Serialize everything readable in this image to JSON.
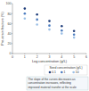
{
  "chart_data": {
    "type": "scatter",
    "x_label": "Log concentration (g/L)",
    "y_label": "Pre-strain fracture (%)",
    "x": [
      1,
      2,
      3,
      4,
      5
    ],
    "series": [
      {
        "name": "0.1",
        "color": "#1f3d7a",
        "marker": "circle",
        "values": [
          90,
          78,
          65,
          55,
          45
        ]
      },
      {
        "name": "1",
        "color": "#4a7bbf",
        "marker": "circle",
        "values": [
          80,
          68,
          56,
          46,
          38
        ]
      },
      {
        "name": "10",
        "color": "#9cc0e6",
        "marker": "circle",
        "values": [
          70,
          58,
          48,
          40,
          32
        ]
      }
    ],
    "xlim": [
      0,
      6
    ],
    "xticks": [
      0,
      1,
      2,
      3,
      4,
      5,
      6
    ],
    "ylim": [
      0,
      100
    ],
    "yticks": [
      0,
      20,
      40,
      60,
      80,
      100
    ],
    "grid": false,
    "legend": "bottom-right",
    "legend_title": "Seed concentration (g/L)",
    "annotations": [
      "The slope of the curves decreases as",
      "concentration increases, reflecting",
      "improved material transfer at the scale"
    ]
  }
}
